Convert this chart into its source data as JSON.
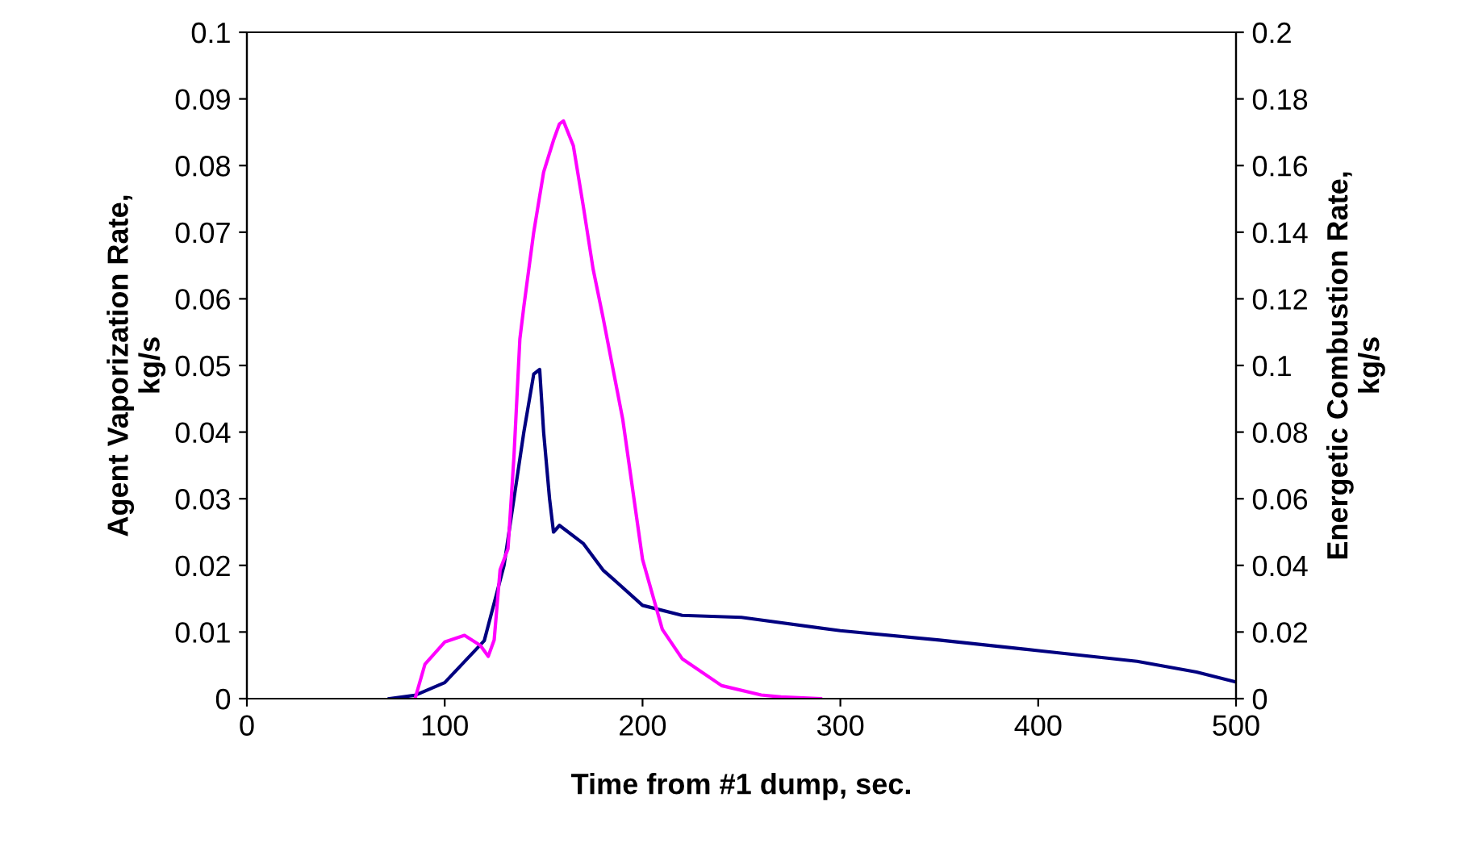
{
  "chart_data": {
    "type": "line",
    "xlabel": "Time from #1 dump, sec.",
    "ylabel": "Agent Vaporization Rate,\nkg/s",
    "y2label": "Energetic Combustion Rate,\nkg/s",
    "xlim": [
      0,
      500
    ],
    "xticks": [
      0,
      100,
      200,
      300,
      400,
      500
    ],
    "ylim": [
      0,
      0.1
    ],
    "yticks": [
      0,
      0.01,
      0.02,
      0.03,
      0.04,
      0.05,
      0.06,
      0.07,
      0.08,
      0.09,
      0.1
    ],
    "y2lim": [
      0,
      0.2
    ],
    "y2ticks": [
      0,
      0.02,
      0.04,
      0.06,
      0.08,
      0.1,
      0.12,
      0.14,
      0.16,
      0.18,
      0.2
    ],
    "grid": false,
    "legend": false,
    "series": [
      {
        "color": "#000080",
        "axis": "y",
        "x": [
          72,
          85,
          100,
          120,
          130,
          140,
          145,
          148,
          150,
          153,
          155,
          158,
          170,
          180,
          185,
          200,
          220,
          250,
          300,
          350,
          400,
          450,
          480,
          500
        ],
        "values": [
          0,
          0.0005,
          0.0024,
          0.0087,
          0.02,
          0.04,
          0.0487,
          0.0494,
          0.04,
          0.03,
          0.025,
          0.026,
          0.0233,
          0.0193,
          0.018,
          0.014,
          0.0125,
          0.0122,
          0.0102,
          0.0088,
          0.0072,
          0.0056,
          0.004,
          0.0025
        ]
      },
      {
        "color": "#ff00ff",
        "axis": "y2",
        "x": [
          85,
          90,
          100,
          110,
          118,
          122,
          125,
          128,
          132,
          135,
          138,
          140,
          145,
          150,
          155,
          158,
          160,
          165,
          170,
          175,
          180,
          190,
          200,
          210,
          220,
          240,
          260,
          270,
          290
        ],
        "values": [
          0,
          0.0103,
          0.017,
          0.019,
          0.016,
          0.0127,
          0.0176,
          0.0387,
          0.045,
          0.0726,
          0.108,
          0.1177,
          0.14,
          0.158,
          0.1676,
          0.1725,
          0.1734,
          0.166,
          0.148,
          0.129,
          0.1145,
          0.0838,
          0.0418,
          0.0208,
          0.012,
          0.0039,
          0.0011,
          0.0005,
          0
        ]
      }
    ]
  }
}
